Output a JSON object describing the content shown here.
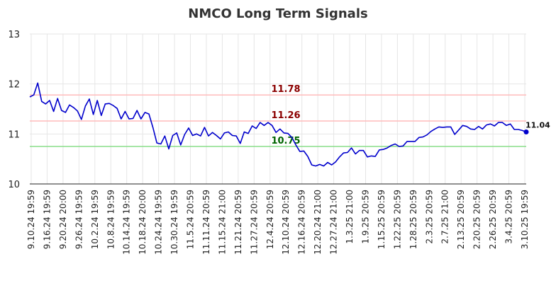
{
  "chart_data": {
    "type": "line",
    "title": "NMCO Long Term Signals",
    "xlabel": "",
    "ylabel": "",
    "ylim": [
      10,
      13
    ],
    "yticks": [
      10,
      11,
      12,
      13
    ],
    "grid": true,
    "colors": {
      "line": "#0000cc",
      "upper": "#ffbbbb",
      "middle": "#ffbbbb",
      "lower": "#88dd88",
      "upper_text": "#8b0000",
      "middle_text": "#8b0000",
      "lower_text": "#006400"
    },
    "x_tick_labels": [
      "9.10.24 19:59",
      "9.16.24 19:59",
      "9.20.24 20:00",
      "9.26.24 19:59",
      "10.2.24 19:59",
      "10.8.24 19:59",
      "10.14.24 19:59",
      "10.18.24 20:00",
      "10.24.24 19:59",
      "10.30.24 19:59",
      "11.5.24 20:59",
      "11.11.24 20:59",
      "11.15.24 21:00",
      "11.21.24 20:59",
      "11.27.24 20:59",
      "12.4.24 20:59",
      "12.10.24 20:59",
      "12.16.24 20:59",
      "12.20.24 21:00",
      "12.27.24 21:00",
      "1.3.25 21:00",
      "1.9.25 20:59",
      "1.15.25 20:59",
      "1.22.25 20:59",
      "1.28.25 20:59",
      "2.3.25 20:59",
      "2.7.25 21:00",
      "2.13.25 20:59",
      "2.20.25 20:59",
      "2.26.25 20:59",
      "3.4.25 20:59",
      "3.10.25 19:59"
    ],
    "levels": [
      {
        "name": "upper",
        "value": 11.78,
        "label": "11.78"
      },
      {
        "name": "middle",
        "value": 11.26,
        "label": "11.26"
      },
      {
        "name": "lower",
        "value": 10.75,
        "label": "10.75"
      }
    ],
    "last_value_label": "11.04",
    "series": [
      {
        "values": [
          11.74,
          11.78,
          12.02,
          11.65,
          11.6,
          11.67,
          11.45,
          11.71,
          11.47,
          11.43,
          11.58,
          11.53,
          11.46,
          11.29,
          11.56,
          11.7,
          11.39,
          11.67,
          11.37,
          11.6,
          11.61,
          11.57,
          11.51,
          11.3,
          11.45,
          11.3,
          11.31,
          11.47,
          11.3,
          11.43,
          11.4,
          11.13,
          10.82,
          10.8,
          10.96,
          10.7,
          10.97,
          11.02,
          10.78,
          10.99,
          11.12,
          10.97,
          11.0,
          10.96,
          11.13,
          10.96,
          11.03,
          10.97,
          10.9,
          11.02,
          11.04,
          10.97,
          10.96,
          10.81,
          11.04,
          11.01,
          11.16,
          11.11,
          11.23,
          11.17,
          11.23,
          11.17,
          11.03,
          11.1,
          11.02,
          11.01,
          10.93,
          10.78,
          10.65,
          10.66,
          10.55,
          10.38,
          10.36,
          10.39,
          10.36,
          10.43,
          10.38,
          10.44,
          10.54,
          10.62,
          10.63,
          10.72,
          10.6,
          10.67,
          10.67,
          10.54,
          10.56,
          10.55,
          10.68,
          10.69,
          10.72,
          10.77,
          10.8,
          10.75,
          10.76,
          10.85,
          10.85,
          10.85,
          10.93,
          10.94,
          10.98,
          11.05,
          11.1,
          11.14,
          11.13,
          11.14,
          11.14,
          10.99,
          11.08,
          11.17,
          11.15,
          11.1,
          11.09,
          11.15,
          11.1,
          11.18,
          11.2,
          11.16,
          11.23,
          11.23,
          11.17,
          11.2,
          11.09,
          11.09,
          11.07,
          11.04
        ]
      }
    ]
  }
}
